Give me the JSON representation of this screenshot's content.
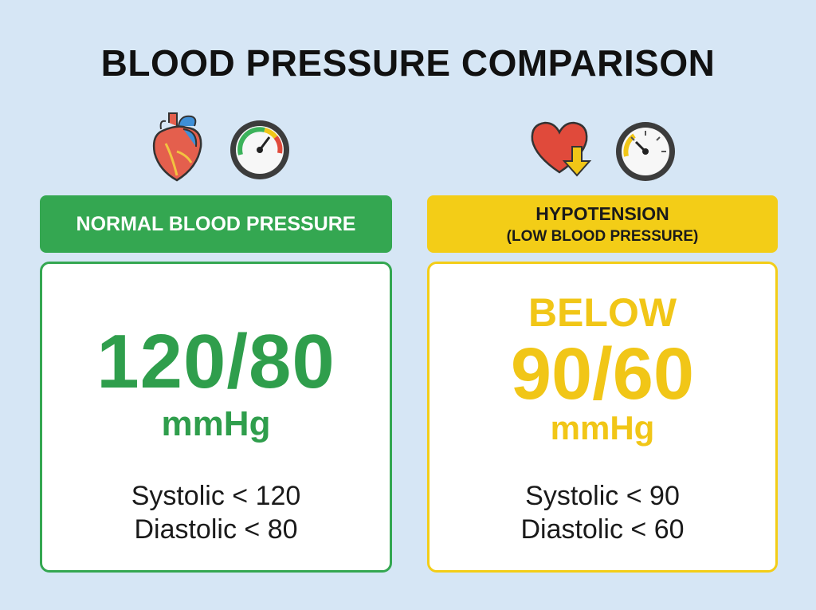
{
  "title": "BLOOD PRESSURE COMPARISON",
  "icons": {
    "normal_heart": "anatomical-heart-icon",
    "normal_gauge": "pressure-gauge-icon",
    "low_heart": "heart-down-arrow-icon",
    "low_gauge": "pressure-gauge-low-icon"
  },
  "colors": {
    "normal": "#34a751",
    "low": "#f3cd17"
  },
  "normal": {
    "header": "NORMAL BLOOD PRESSURE",
    "value": "120/80",
    "unit": "mmHg",
    "systolic": "Systolic < 120",
    "diastolic": "Diastolic < 80"
  },
  "hypotension": {
    "header_line1": "HYPOTENSION",
    "header_line2": "(LOW BLOOD PRESSURE)",
    "prefix": "BELOW",
    "value": "90/60",
    "unit": "mmHg",
    "systolic": "Systolic < 90",
    "diastolic": "Diastolic < 60"
  }
}
